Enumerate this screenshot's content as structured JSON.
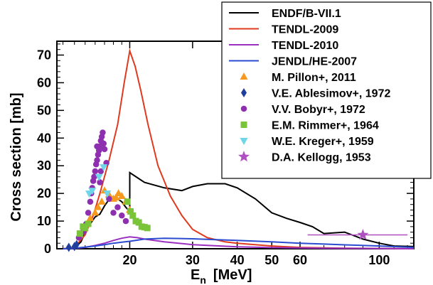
{
  "chart_data": {
    "type": "line",
    "xlabel_main": "E",
    "xlabel_sub": "n",
    "xlabel_unit": "[MeV]",
    "ylabel": "Cross section  [mb]",
    "x_scale": "log",
    "xlim": [
      12.5,
      125
    ],
    "ylim": [
      0,
      75
    ],
    "x_ticks": [
      20,
      30,
      40,
      50,
      60,
      100
    ],
    "y_ticks": [
      0,
      10,
      20,
      30,
      40,
      50,
      60,
      70
    ],
    "x_minor_ticks": [
      13,
      14,
      15,
      16,
      17,
      18,
      19,
      20,
      30,
      40,
      50,
      60,
      70,
      80,
      90,
      100,
      110,
      120
    ],
    "y_minor_step": 2,
    "grid": false,
    "legend_position": "top-right",
    "lines": [
      {
        "name": "ENDF/B-VII.1",
        "color": "#000000",
        "points": [
          [
            13.3,
            0
          ],
          [
            14,
            0.3
          ],
          [
            14.6,
            2.5
          ],
          [
            15,
            6
          ],
          [
            15.5,
            9
          ],
          [
            16,
            11.5
          ],
          [
            16.5,
            12.5
          ],
          [
            17,
            15.5
          ],
          [
            17.5,
            17.8
          ],
          [
            18,
            18.3
          ],
          [
            18.5,
            18
          ],
          [
            19,
            17
          ],
          [
            19.5,
            15
          ],
          [
            20,
            13.5
          ],
          [
            20,
            27.5
          ],
          [
            22,
            24
          ],
          [
            25,
            22
          ],
          [
            28,
            21
          ],
          [
            30,
            22.5
          ],
          [
            33,
            23.5
          ],
          [
            37,
            23.5
          ],
          [
            40,
            22
          ],
          [
            45,
            18
          ],
          [
            50,
            13
          ],
          [
            55,
            11
          ],
          [
            60,
            9.5
          ],
          [
            65,
            8
          ],
          [
            70,
            5.5
          ],
          [
            80,
            6
          ],
          [
            90,
            3.5
          ],
          [
            100,
            2
          ],
          [
            110,
            1
          ],
          [
            125,
            0.8
          ]
        ]
      },
      {
        "name": "TENDL-2009",
        "color": "#e03a1e",
        "points": [
          [
            13,
            0
          ],
          [
            14,
            0.5
          ],
          [
            15,
            5
          ],
          [
            15.8,
            12
          ],
          [
            16.5,
            20
          ],
          [
            17.5,
            32
          ],
          [
            18.5,
            45
          ],
          [
            19.3,
            60
          ],
          [
            20,
            71.5
          ],
          [
            20.7,
            66
          ],
          [
            21.5,
            57
          ],
          [
            22.5,
            45
          ],
          [
            24,
            30
          ],
          [
            26,
            19
          ],
          [
            28,
            12
          ],
          [
            30,
            7
          ],
          [
            33,
            4
          ],
          [
            37,
            2.5
          ],
          [
            40,
            2
          ],
          [
            50,
            1
          ],
          [
            60,
            0.5
          ],
          [
            80,
            0.2
          ],
          [
            125,
            0
          ]
        ]
      },
      {
        "name": "TENDL-2010",
        "color": "#9b30c0",
        "points": [
          [
            13,
            0
          ],
          [
            14,
            0.1
          ],
          [
            15,
            0.5
          ],
          [
            16,
            1.2
          ],
          [
            17,
            2
          ],
          [
            18,
            3
          ],
          [
            19,
            3.8
          ],
          [
            20,
            4.3
          ],
          [
            21,
            4
          ],
          [
            22,
            3.5
          ],
          [
            25,
            2.5
          ],
          [
            30,
            1.5
          ],
          [
            40,
            0.7
          ],
          [
            50,
            0.4
          ],
          [
            70,
            0.2
          ],
          [
            125,
            0
          ]
        ]
      },
      {
        "name": "JENDL/HE-2007",
        "color": "#2b4bd0",
        "points": [
          [
            13,
            0
          ],
          [
            14,
            0.2
          ],
          [
            15,
            0.6
          ],
          [
            16,
            1
          ],
          [
            17,
            1.5
          ],
          [
            18,
            2
          ],
          [
            19,
            2.4
          ],
          [
            20,
            2.7
          ],
          [
            22,
            3.5
          ],
          [
            25,
            3.8
          ],
          [
            30,
            3.6
          ],
          [
            35,
            3.3
          ],
          [
            40,
            3
          ],
          [
            50,
            2.5
          ],
          [
            60,
            2
          ],
          [
            70,
            1.7
          ],
          [
            80,
            1.4
          ],
          [
            100,
            1
          ],
          [
            125,
            0.5
          ]
        ]
      }
    ],
    "experiments": [
      {
        "name": "M. Pillon+, 2011",
        "color": "#f59a1d",
        "marker": "triangle",
        "points": [
          [
            15.5,
            11
          ],
          [
            16,
            13
          ],
          [
            16.3,
            15
          ],
          [
            16.7,
            17
          ],
          [
            17,
            21
          ],
          [
            17.5,
            19.5
          ],
          [
            18,
            18
          ],
          [
            18.3,
            18.5
          ],
          [
            18.6,
            20
          ],
          [
            19,
            19
          ],
          [
            19.5,
            17
          ],
          [
            20,
            14
          ]
        ]
      },
      {
        "name": "V.E. Ablesimov+, 1972",
        "color": "#1e3f9e",
        "marker": "diamond",
        "points": [
          [
            13.5,
            0.5
          ],
          [
            14,
            0.8
          ],
          [
            14.2,
            1.5
          ]
        ]
      },
      {
        "name": "V.V. Bobyr+, 1972",
        "color": "#8e2fb0",
        "marker": "circle",
        "points": [
          [
            14.4,
            4
          ],
          [
            14.8,
            6
          ],
          [
            15.1,
            9
          ],
          [
            15.3,
            13
          ],
          [
            15.5,
            17
          ],
          [
            15.6,
            20
          ],
          [
            15.7,
            22
          ],
          [
            15.8,
            24.5
          ],
          [
            15.9,
            26
          ],
          [
            16,
            28
          ],
          [
            16.1,
            30.5
          ],
          [
            16.2,
            32
          ],
          [
            16.3,
            34
          ],
          [
            16.4,
            35.5
          ],
          [
            16.5,
            37
          ],
          [
            16.6,
            39
          ],
          [
            16.7,
            40.5
          ],
          [
            16.8,
            42
          ],
          [
            16.9,
            38
          ],
          [
            17,
            36
          ],
          [
            16.2,
            37
          ],
          [
            16.5,
            24
          ],
          [
            16.6,
            28
          ],
          [
            17.2,
            31
          ],
          [
            17.5,
            18
          ],
          [
            18,
            13
          ],
          [
            18.5,
            15
          ],
          [
            19,
            12
          ],
          [
            19.5,
            10
          ]
        ]
      },
      {
        "name": "E.M. Rimmer+, 1964",
        "color": "#7ac43a",
        "marker": "square",
        "points": [
          [
            14.5,
            5.5
          ],
          [
            14.8,
            8
          ],
          [
            15,
            7.5
          ],
          [
            15.3,
            9
          ],
          [
            19.7,
            17
          ],
          [
            20.1,
            13.5
          ],
          [
            20.4,
            12
          ],
          [
            20.8,
            10
          ],
          [
            21.2,
            9.5
          ],
          [
            21.6,
            8
          ],
          [
            22,
            7.8
          ],
          [
            22.4,
            7.5
          ]
        ]
      },
      {
        "name": "W.E. Kreger+, 1959",
        "color": "#6ed6e8",
        "marker": "triangle-down",
        "points": [
          [
            15.4,
            20
          ],
          [
            15.7,
            21
          ],
          [
            16.4,
            26
          ],
          [
            16.9,
            29.5
          ],
          [
            17.3,
            20
          ]
        ]
      },
      {
        "name": "D.A. Kellogg, 1953",
        "color": "#b04fc0",
        "marker": "star",
        "points": [
          [
            90,
            5
          ]
        ],
        "x_errors": [
          [
            63,
            120
          ]
        ]
      }
    ]
  }
}
